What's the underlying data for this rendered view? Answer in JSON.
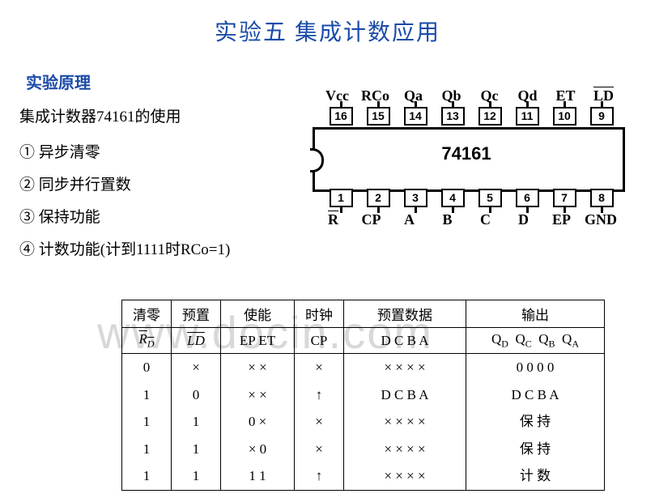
{
  "title": "实验五    集成计数应用",
  "subtitle": "实验原理",
  "usage": "集成计数器74161的使用",
  "features": [
    "① 异步清零",
    "② 同步并行置数",
    "③ 保持功能",
    "④ 计数功能(计到1111时RCo=1)"
  ],
  "chip": {
    "name": "74161",
    "top_labels": [
      "Vcc",
      "RCo",
      "Qa",
      "Qb",
      "Qc",
      "Qd",
      "ET",
      "LD"
    ],
    "top_pins": [
      "16",
      "15",
      "14",
      "13",
      "12",
      "11",
      "10",
      "9"
    ],
    "bot_pins": [
      "1",
      "2",
      "3",
      "4",
      "5",
      "6",
      "7",
      "8"
    ],
    "bot_labels": [
      "R",
      "CP",
      "A",
      "B",
      "C",
      "D",
      "EP",
      "GND"
    ]
  },
  "table": {
    "headers": [
      "清零",
      "预置",
      "使能",
      "时钟",
      "预置数据",
      "输出"
    ],
    "sub_rd": "R",
    "sub_rd_sub": "D",
    "sub_ld": "LD",
    "sub_enable": "EP ET",
    "sub_cp": "CP",
    "sub_data": "D C B A",
    "sub_out_q": "Q",
    "rows": [
      {
        "rd": "0",
        "ld": "×",
        "en": "×  ×",
        "cp": "×",
        "data": "×  ×  ×  ×",
        "out": "0  0  0  0"
      },
      {
        "rd": "1",
        "ld": "0",
        "en": "×  ×",
        "cp": "↑",
        "data": "D  C  B  A",
        "out": "D  C  B  A"
      },
      {
        "rd": "1",
        "ld": "1",
        "en": "0  ×",
        "cp": "×",
        "data": "×  ×  ×  ×",
        "out": "保 持"
      },
      {
        "rd": "1",
        "ld": "1",
        "en": "×  0",
        "cp": "×",
        "data": "×  ×  ×  ×",
        "out": "保 持"
      },
      {
        "rd": "1",
        "ld": "1",
        "en": "1  1",
        "cp": "↑",
        "data": "×  ×  ×  ×",
        "out": "计 数"
      }
    ]
  },
  "watermark": "www.docin.com"
}
